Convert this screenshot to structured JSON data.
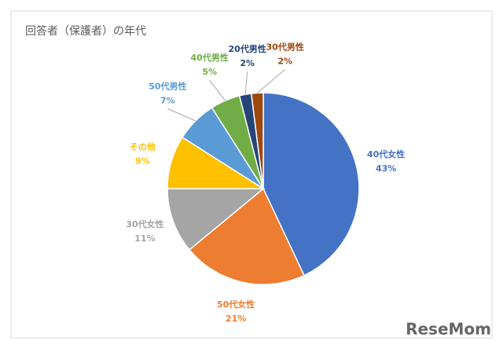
{
  "chart_data": {
    "type": "pie",
    "title": "回答者（保護者）の年代",
    "categories": [
      "40代女性",
      "50代女性",
      "30代女性",
      "その他",
      "50代男性",
      "40代男性",
      "20代男性",
      "30代男性"
    ],
    "values": [
      43,
      21,
      11,
      9,
      7,
      5,
      2,
      2
    ],
    "value_labels": [
      "43%",
      "21%",
      "11%",
      "9%",
      "7%",
      "5%",
      "2%",
      "2%"
    ],
    "colors": [
      "#4472c4",
      "#ed7d31",
      "#a5a5a5",
      "#ffc000",
      "#5b9bd5",
      "#70ad47",
      "#264478",
      "#9e480e"
    ]
  },
  "watermark": "ReseMom"
}
